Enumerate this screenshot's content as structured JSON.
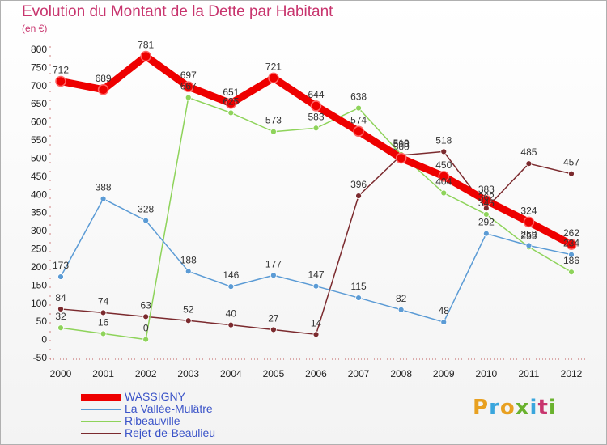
{
  "header": {
    "title": "Evolution du Montant de la Dette par Habitant",
    "subtitle": "(en €)"
  },
  "brand": {
    "text": "Proxiti",
    "colors": [
      "#e8a020",
      "#3aa6dd",
      "#e8a020",
      "#6ab22e",
      "#3aa6dd",
      "#c8356e",
      "#6ab22e"
    ]
  },
  "chart_data": {
    "type": "line",
    "title": "Evolution du Montant de la Dette par Habitant",
    "subtitle": "(en €)",
    "x": [
      "2000",
      "2001",
      "2002",
      "2003",
      "2004",
      "2005",
      "2006",
      "2007",
      "2008",
      "2009",
      "2010",
      "2011",
      "2012"
    ],
    "ylim": [
      -50,
      800
    ],
    "yticks": [
      -50,
      0,
      50,
      100,
      150,
      200,
      250,
      300,
      350,
      400,
      450,
      500,
      550,
      600,
      650,
      700,
      750,
      800
    ],
    "grid": false,
    "legend_position": "bottom-left",
    "series": [
      {
        "name": "WASSIGNY",
        "color": "#ee0000",
        "values": [
          712,
          689,
          781,
          697,
          651,
          721,
          644,
          574,
          500,
          450,
          383,
          324,
          262
        ]
      },
      {
        "name": "La Vallée-Mulâtre",
        "color": "#5b9bd5",
        "values": [
          173,
          388,
          328,
          188,
          146,
          177,
          147,
          115,
          82,
          48,
          292,
          259,
          234
        ]
      },
      {
        "name": "Ribeauville",
        "color": "#8ed35a",
        "values": [
          32,
          16,
          0,
          667,
          625,
          573,
          583,
          638,
          510,
          404,
          345,
          255,
          186
        ]
      },
      {
        "name": "Rejet-de-Beaulieu",
        "color": "#7b2a2e",
        "values": [
          84,
          74,
          63,
          52,
          40,
          27,
          14,
          396,
          508,
          518,
          362,
          485,
          457
        ]
      }
    ]
  }
}
